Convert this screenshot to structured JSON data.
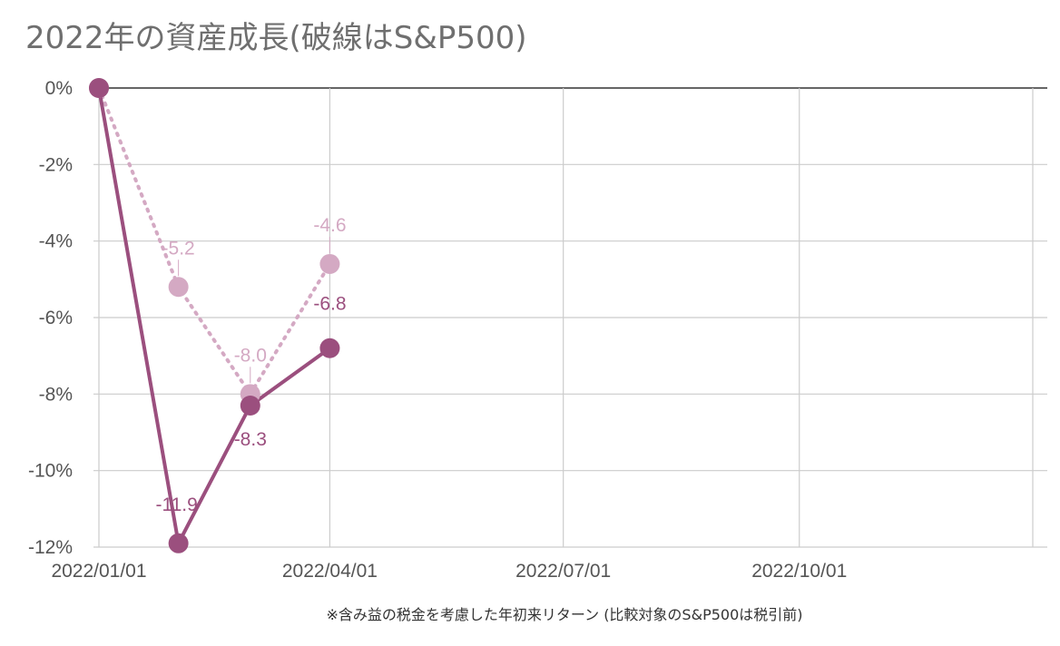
{
  "chart_data": {
    "type": "line",
    "title": "2022年の資産成長(破線はS&P500)",
    "note": "※含み益の税金を考慮した年初来リターン (比較対象のS&P500は税引前)",
    "xlabel": "",
    "ylabel": "",
    "x": [
      "2022-01-01",
      "2022-02-01",
      "2022-03-01",
      "2022-04-01"
    ],
    "xlim": [
      "2022-01-01",
      "2022-12-31"
    ],
    "x_ticks": [
      "2022/01/01",
      "2022/04/01",
      "2022/07/01",
      "2022/10/01"
    ],
    "ylim": [
      -12,
      0
    ],
    "y_ticks": [
      "0%",
      "-2%",
      "-4%",
      "-6%",
      "-8%",
      "-10%",
      "-12%"
    ],
    "grid": true,
    "series": [
      {
        "values": [
          0,
          -11.9,
          -8.3,
          -6.8
        ],
        "labels": [
          "",
          "-11.9",
          "-8.3",
          "-6.8"
        ],
        "style": "solid",
        "color": "#9b4f7e"
      },
      {
        "values": [
          0,
          -5.2,
          -8.0,
          -4.6
        ],
        "labels": [
          "",
          "-5.2",
          "-8.0",
          "-4.6"
        ],
        "style": "dotted",
        "color": "#d4a9c3"
      }
    ]
  }
}
